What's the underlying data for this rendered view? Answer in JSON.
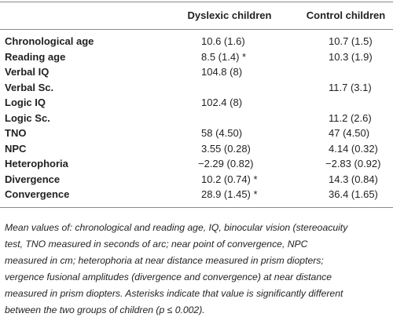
{
  "table": {
    "header": [
      "Dyslexic children",
      "Control children"
    ],
    "rows": [
      [
        "Chronological age",
        "10.6 (1.6)",
        "10.7 (1.5)"
      ],
      [
        "Reading age",
        "8.5 (1.4) *",
        "10.3 (1.9)"
      ],
      [
        "Verbal IQ",
        "104.8 (8)",
        null
      ],
      [
        "Verbal Sc.",
        null,
        "11.7 (3.1)"
      ],
      [
        "Logic IQ",
        "102.4 (8)",
        null
      ],
      [
        "Logic Sc.",
        null,
        "11.2 (2.6)"
      ],
      [
        "TNO",
        "58 (4.50)",
        "47 (4.50)"
      ],
      [
        "NPC",
        "3.55 (0.28)",
        "4.14 (0.32)"
      ],
      [
        "Heterophoria",
        "−2.29 (0.82)",
        "−2.83 (0.92)"
      ],
      [
        "Divergence",
        "10.2 (0.74) *",
        "14.3 (0.84)"
      ],
      [
        "Convergence",
        "28.9 (1.45) *",
        "36.4 (1.65)"
      ]
    ],
    "caption": [
      "Mean values of: chronological and reading age, IQ, binocular vision (stereoacuity",
      "test, TNO measured in seconds of arc; near point of convergence, NPC",
      "measured in cm; heterophoria at near distance measured in prism diopters;",
      "vergence fusional amplitudes (divergence and convergence) at near distance",
      "measured in prism diopters. Asterisks indicate that value is significantly different",
      "between the two groups of children (p ≤ 0.002)."
    ]
  }
}
